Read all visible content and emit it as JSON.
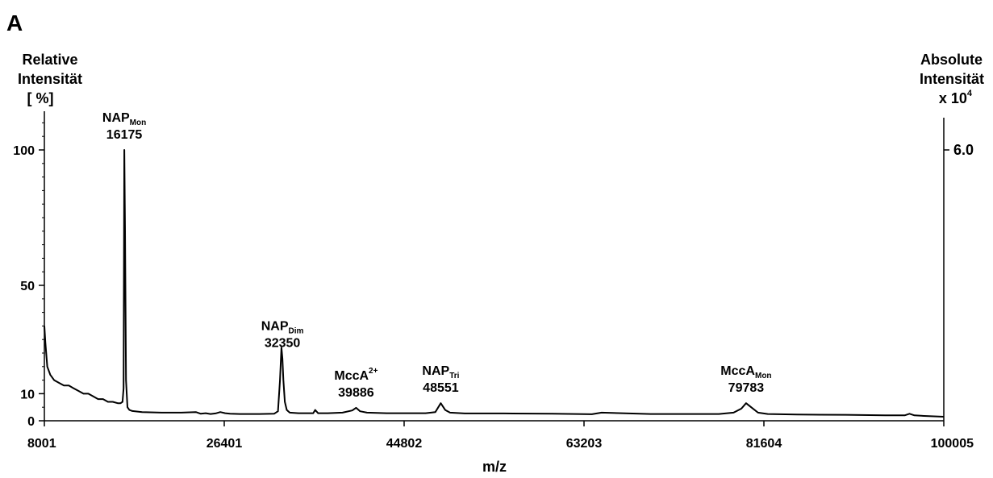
{
  "panel_label": "A",
  "chart_data": {
    "type": "line",
    "xlabel": "m/z",
    "y_left_label": [
      "Relative",
      "Intensität",
      "[ %]"
    ],
    "y_right_label": [
      "Absolute",
      "Intensität",
      "x 10"
    ],
    "y_right_label_exponent": "4",
    "xlim": [
      8001,
      100005
    ],
    "ylim": [
      0,
      100
    ],
    "x_ticks": [
      8001,
      26401,
      44802,
      63203,
      81604,
      100005
    ],
    "x_tick_labels": [
      "8001",
      "26401",
      "44802",
      "63203",
      "81604",
      "100005"
    ],
    "y_ticks": [
      0,
      10,
      50,
      100
    ],
    "y_tick_labels": [
      "0",
      "10",
      "50",
      "100"
    ],
    "y_right_tick_value": 100,
    "y_right_tick_label": "6.0",
    "color": "#000000",
    "series": [
      {
        "x": [
          8001,
          8100,
          8300,
          8600,
          9000,
          9500,
          10000,
          10500,
          11000,
          11500,
          12000,
          12500,
          13000,
          13500,
          14000,
          14500,
          15000,
          15500,
          15800,
          16000,
          16100,
          16175,
          16250,
          16350,
          16500,
          16700,
          17000,
          18000,
          20000,
          22000,
          23500,
          24000,
          24500,
          25000,
          25500,
          26000,
          26500,
          27000,
          28000,
          30000,
          31500,
          31900,
          32100,
          32250,
          32350,
          32450,
          32600,
          32800,
          33100,
          34000,
          35500,
          35700,
          36000,
          37000,
          38500,
          39500,
          39886,
          40300,
          41000,
          43000,
          45000,
          47000,
          48000,
          48551,
          49000,
          49500,
          51000,
          55000,
          60000,
          64000,
          65000,
          70000,
          75000,
          77000,
          78500,
          79300,
          79783,
          80300,
          81000,
          82000,
          85000,
          90000,
          94000,
          96000,
          96500,
          97000,
          98000,
          100005
        ],
        "y": [
          35,
          29,
          20,
          17,
          15,
          14,
          13,
          13,
          12,
          11,
          10,
          10,
          9,
          8,
          8,
          7,
          7,
          6.5,
          6.5,
          7,
          12,
          100,
          70,
          15,
          5,
          4,
          3.6,
          3.2,
          3,
          3,
          3.2,
          2.6,
          2.8,
          2.5,
          2.7,
          3.2,
          2.8,
          2.6,
          2.5,
          2.5,
          2.6,
          3.5,
          15,
          27,
          23,
          15,
          7,
          4,
          3,
          2.8,
          2.8,
          4,
          2.8,
          2.8,
          3,
          3.8,
          4.8,
          3.5,
          3,
          2.8,
          2.8,
          2.8,
          3.2,
          6.5,
          4,
          3,
          2.7,
          2.7,
          2.6,
          2.4,
          3,
          2.5,
          2.5,
          2.5,
          3,
          4.5,
          6.5,
          5,
          3,
          2.5,
          2.3,
          2.2,
          2.0,
          2.0,
          2.6,
          2.0,
          1.8,
          1.5
        ]
      }
    ],
    "annotations": [
      {
        "label": "NAP",
        "sub": "Mon",
        "sup": "",
        "value": "16175",
        "x": 16175
      },
      {
        "label": "NAP",
        "sub": "Dim",
        "sup": "",
        "value": "32350",
        "x": 32350
      },
      {
        "label": "MccA",
        "sub": "",
        "sup": "2+",
        "value": "39886",
        "x": 39886
      },
      {
        "label": "NAP",
        "sub": "Tri",
        "sup": "",
        "value": "48551",
        "x": 48551
      },
      {
        "label": "MccA",
        "sub": "Mon",
        "sup": "",
        "value": "79783",
        "x": 79783
      }
    ]
  }
}
